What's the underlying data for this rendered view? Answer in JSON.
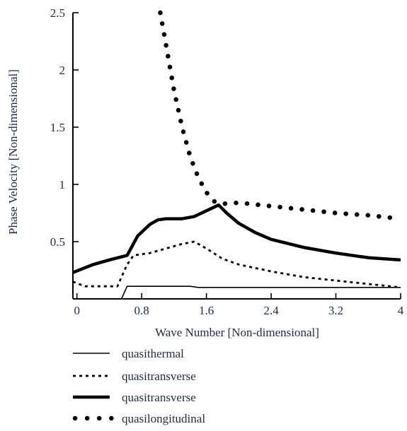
{
  "chart_data": {
    "type": "line",
    "title": "",
    "xlabel": "Wave Number [Non-dimensional]",
    "ylabel": "Phase Velocity [Non-dimensional]",
    "xlim": [
      -0.05,
      4.0
    ],
    "ylim": [
      0.0,
      2.5
    ],
    "x_ticks": [
      0,
      0.8,
      1.6,
      2.4,
      3.2,
      4
    ],
    "x_tick_labels": [
      "0",
      "0.8",
      "1.6",
      "2.4",
      "3.2",
      "4"
    ],
    "y_ticks": [
      0.5,
      1,
      1.5,
      2,
      2.5
    ],
    "y_tick_labels": [
      "0.5",
      "1",
      "1.5",
      "2",
      "2.5"
    ],
    "grid": false,
    "legend_position": "bottom",
    "line_color": "#000000",
    "series": [
      {
        "name": "quasithermal",
        "style": "thin-solid",
        "points": [
          [
            -0.05,
            0.0
          ],
          [
            0.55,
            0.0
          ],
          [
            0.62,
            0.11
          ],
          [
            1.4,
            0.11
          ],
          [
            1.5,
            0.1
          ],
          [
            4.0,
            0.1
          ]
        ]
      },
      {
        "name": "quasitransverse",
        "style": "dashed",
        "points": [
          [
            -0.05,
            0.15
          ],
          [
            0.1,
            0.11
          ],
          [
            0.5,
            0.11
          ],
          [
            0.62,
            0.3
          ],
          [
            0.7,
            0.38
          ],
          [
            0.9,
            0.4
          ],
          [
            1.1,
            0.44
          ],
          [
            1.3,
            0.48
          ],
          [
            1.45,
            0.5
          ],
          [
            1.6,
            0.44
          ],
          [
            1.8,
            0.35
          ],
          [
            2.0,
            0.3
          ],
          [
            2.4,
            0.24
          ],
          [
            2.8,
            0.19
          ],
          [
            3.2,
            0.16
          ],
          [
            3.6,
            0.13
          ],
          [
            4.0,
            0.1
          ]
        ]
      },
      {
        "name": "quasitransverse",
        "style": "thick-solid",
        "points": [
          [
            -0.05,
            0.23
          ],
          [
            0.2,
            0.3
          ],
          [
            0.4,
            0.34
          ],
          [
            0.62,
            0.38
          ],
          [
            0.75,
            0.55
          ],
          [
            0.9,
            0.65
          ],
          [
            1.0,
            0.69
          ],
          [
            1.1,
            0.7
          ],
          [
            1.3,
            0.7
          ],
          [
            1.45,
            0.72
          ],
          [
            1.6,
            0.77
          ],
          [
            1.75,
            0.82
          ],
          [
            1.85,
            0.75
          ],
          [
            2.0,
            0.66
          ],
          [
            2.2,
            0.58
          ],
          [
            2.4,
            0.52
          ],
          [
            2.8,
            0.45
          ],
          [
            3.2,
            0.4
          ],
          [
            3.6,
            0.36
          ],
          [
            4.0,
            0.34
          ]
        ]
      },
      {
        "name": "quasilongitudinal",
        "style": "dotted",
        "points": [
          [
            1.03,
            2.5
          ],
          [
            1.1,
            2.22
          ],
          [
            1.2,
            1.82
          ],
          [
            1.3,
            1.5
          ],
          [
            1.4,
            1.24
          ],
          [
            1.5,
            1.06
          ],
          [
            1.6,
            0.93
          ],
          [
            1.7,
            0.85
          ],
          [
            1.8,
            0.83
          ],
          [
            2.0,
            0.84
          ],
          [
            2.4,
            0.81
          ],
          [
            2.8,
            0.78
          ],
          [
            3.2,
            0.75
          ],
          [
            3.6,
            0.73
          ],
          [
            4.0,
            0.7
          ]
        ]
      }
    ]
  }
}
